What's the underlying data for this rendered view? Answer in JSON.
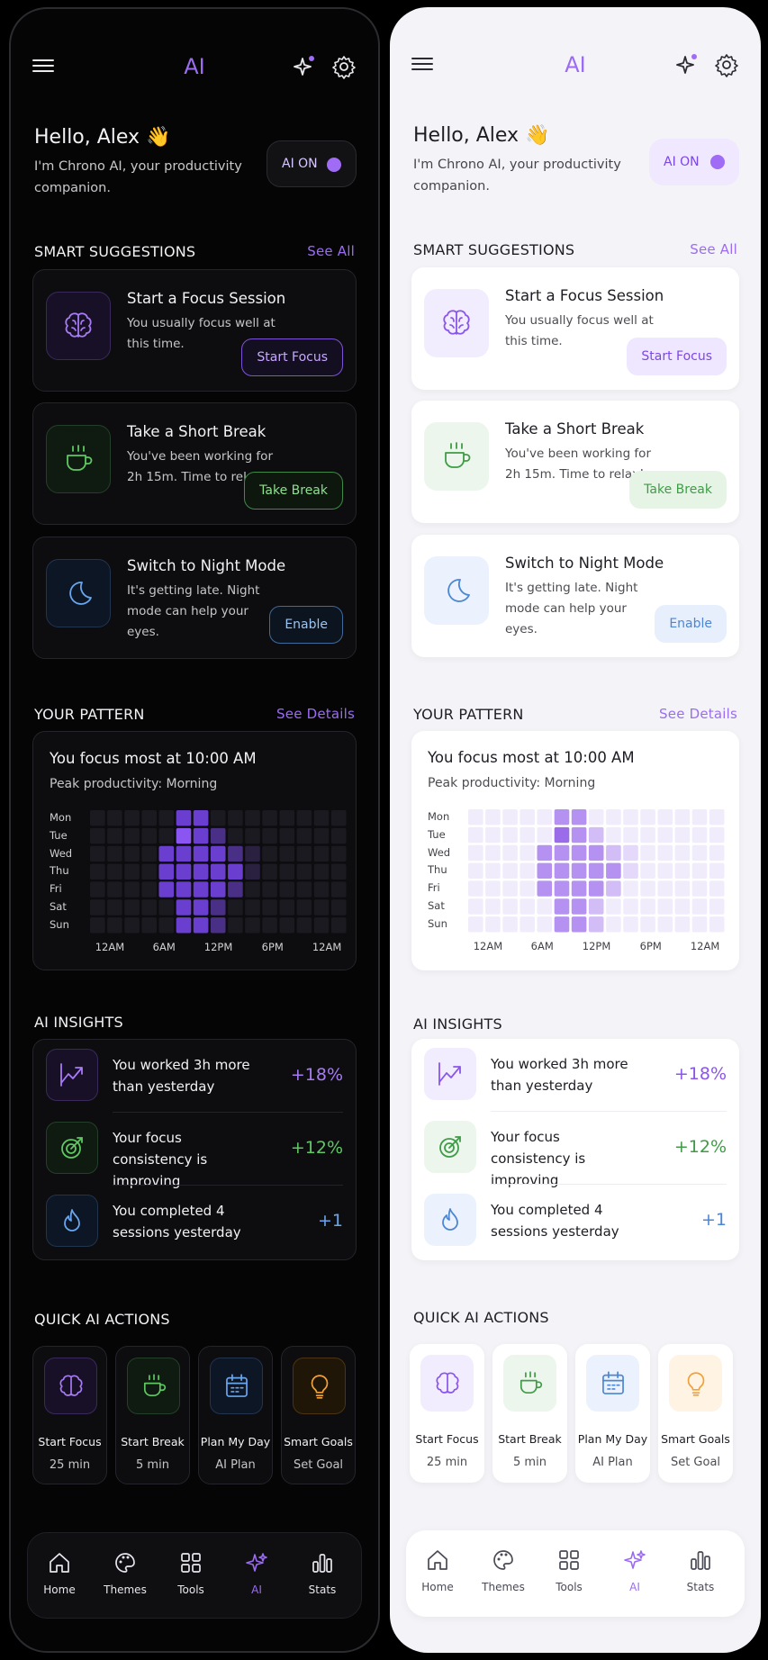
{
  "app": {
    "title": "AI"
  },
  "greeting": {
    "hello": "Hello, Alex 👋",
    "subtitle": "I'm Chrono AI, your productivity companion."
  },
  "ai_toggle": {
    "label": "AI ON",
    "on": true
  },
  "smart_suggestions": {
    "heading": "SMART SUGGESTIONS",
    "see_all": "See All",
    "items": [
      {
        "title": "Start a Focus Session",
        "description": "You usually focus well at this time.",
        "action": "Start Focus",
        "icon": "brain-icon",
        "color": "purple"
      },
      {
        "title": "Take a Short Break",
        "description": "You've been working for 2h 15m. Time to relax!",
        "action": "Take Break",
        "icon": "coffee-icon",
        "color": "green"
      },
      {
        "title": "Switch to Night Mode",
        "description": "It's getting late. Night mode can help your eyes.",
        "action": "Enable",
        "icon": "moon-icon",
        "color": "blue"
      }
    ]
  },
  "pattern": {
    "heading": "YOUR PATTERN",
    "see_details": "See Details",
    "title": "You focus most at 10:00 AM",
    "subtitle": "Peak productivity: Morning",
    "days": [
      "Mon",
      "Tue",
      "Wed",
      "Thu",
      "Fri",
      "Sat",
      "Sun"
    ],
    "hour_labels": [
      "12AM",
      "6AM",
      "12PM",
      "6PM",
      "12AM"
    ],
    "heatmap": [
      [
        0,
        0,
        0,
        0,
        0,
        3,
        3,
        0,
        0,
        0,
        0,
        0,
        0,
        0,
        0
      ],
      [
        0,
        0,
        0,
        0,
        0,
        4,
        3,
        2,
        0,
        0,
        0,
        0,
        0,
        0,
        0
      ],
      [
        0,
        0,
        0,
        0,
        3,
        3,
        3,
        3,
        2,
        1,
        0,
        0,
        0,
        0,
        0
      ],
      [
        0,
        0,
        0,
        0,
        3,
        3,
        3,
        3,
        3,
        1,
        0,
        0,
        0,
        0,
        0
      ],
      [
        0,
        0,
        0,
        0,
        3,
        3,
        3,
        3,
        2,
        0,
        0,
        0,
        0,
        0,
        0
      ],
      [
        0,
        0,
        0,
        0,
        0,
        3,
        3,
        2,
        0,
        0,
        0,
        0,
        0,
        0,
        0
      ],
      [
        0,
        0,
        0,
        0,
        0,
        3,
        3,
        2,
        0,
        0,
        0,
        0,
        0,
        0,
        0
      ]
    ]
  },
  "insights": {
    "heading": "AI INSIGHTS",
    "items": [
      {
        "text": "You worked 3h more than yesterday",
        "value": "+18%",
        "icon": "trend-up-icon",
        "color": "purple"
      },
      {
        "text": "Your focus consistency is improving",
        "value": "+12%",
        "icon": "target-icon",
        "color": "green"
      },
      {
        "text": "You completed 4 sessions yesterday",
        "value": "+1",
        "icon": "flame-icon",
        "color": "blue"
      }
    ]
  },
  "quick_actions": {
    "heading": "QUICK AI ACTIONS",
    "items": [
      {
        "label": "Start Focus",
        "sub": "25 min",
        "icon": "brain-icon",
        "color": "purple"
      },
      {
        "label": "Start Break",
        "sub": "5 min",
        "icon": "coffee-icon",
        "color": "green"
      },
      {
        "label": "Plan My Day",
        "sub": "AI Plan",
        "icon": "calendar-icon",
        "color": "blue"
      },
      {
        "label": "Smart Goals",
        "sub": "Set Goal",
        "icon": "lightbulb-icon",
        "color": "orange"
      }
    ]
  },
  "nav": {
    "items": [
      {
        "label": "Home",
        "icon": "home-icon"
      },
      {
        "label": "Themes",
        "icon": "palette-icon"
      },
      {
        "label": "Tools",
        "icon": "grid-icon"
      },
      {
        "label": "AI",
        "icon": "sparkle-icon",
        "active": true
      },
      {
        "label": "Stats",
        "icon": "bar-chart-icon"
      }
    ]
  },
  "colors": {
    "accent": "#9b6cf2",
    "green": "#5fc863",
    "blue": "#6aa6ee",
    "orange": "#f0a23a"
  }
}
